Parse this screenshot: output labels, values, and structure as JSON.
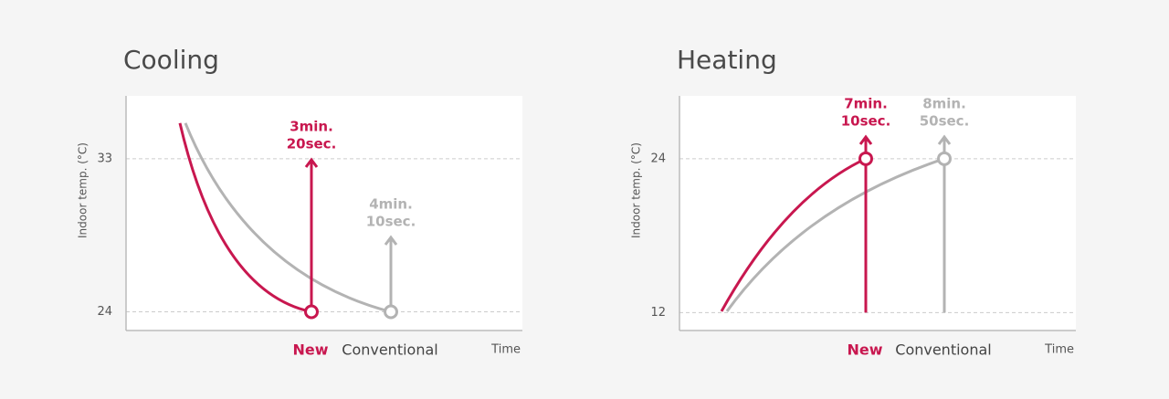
{
  "chart_data": [
    {
      "type": "line",
      "title": "Cooling",
      "y_label": "Indoor temp. (°C)",
      "x_label": "Time",
      "ylim": [
        22.9,
        36.7
      ],
      "yticks": [
        24,
        33
      ],
      "grid": true,
      "series": [
        {
          "name": "New",
          "color": "#c8174f",
          "values": [
            35.1,
            24
          ],
          "time_label": [
            "3min.",
            "20sec."
          ]
        },
        {
          "name": "Conventional",
          "color": "#b3b3b3",
          "values": [
            35.1,
            24
          ],
          "time_label": [
            "4min.",
            "10sec."
          ]
        }
      ]
    },
    {
      "type": "line",
      "title": "Heating",
      "y_label": "Indoor temp. (°C)",
      "x_label": "Time",
      "ylim": [
        10.6,
        28.9
      ],
      "yticks": [
        12,
        24
      ],
      "grid": true,
      "series": [
        {
          "name": "New",
          "color": "#c8174f",
          "values": [
            12.1,
            24
          ],
          "time_label": [
            "7min.",
            "10sec."
          ]
        },
        {
          "name": "Conventional",
          "color": "#b3b3b3",
          "values": [
            12.1,
            24
          ],
          "time_label": [
            "8min.",
            "50sec."
          ]
        }
      ]
    }
  ]
}
